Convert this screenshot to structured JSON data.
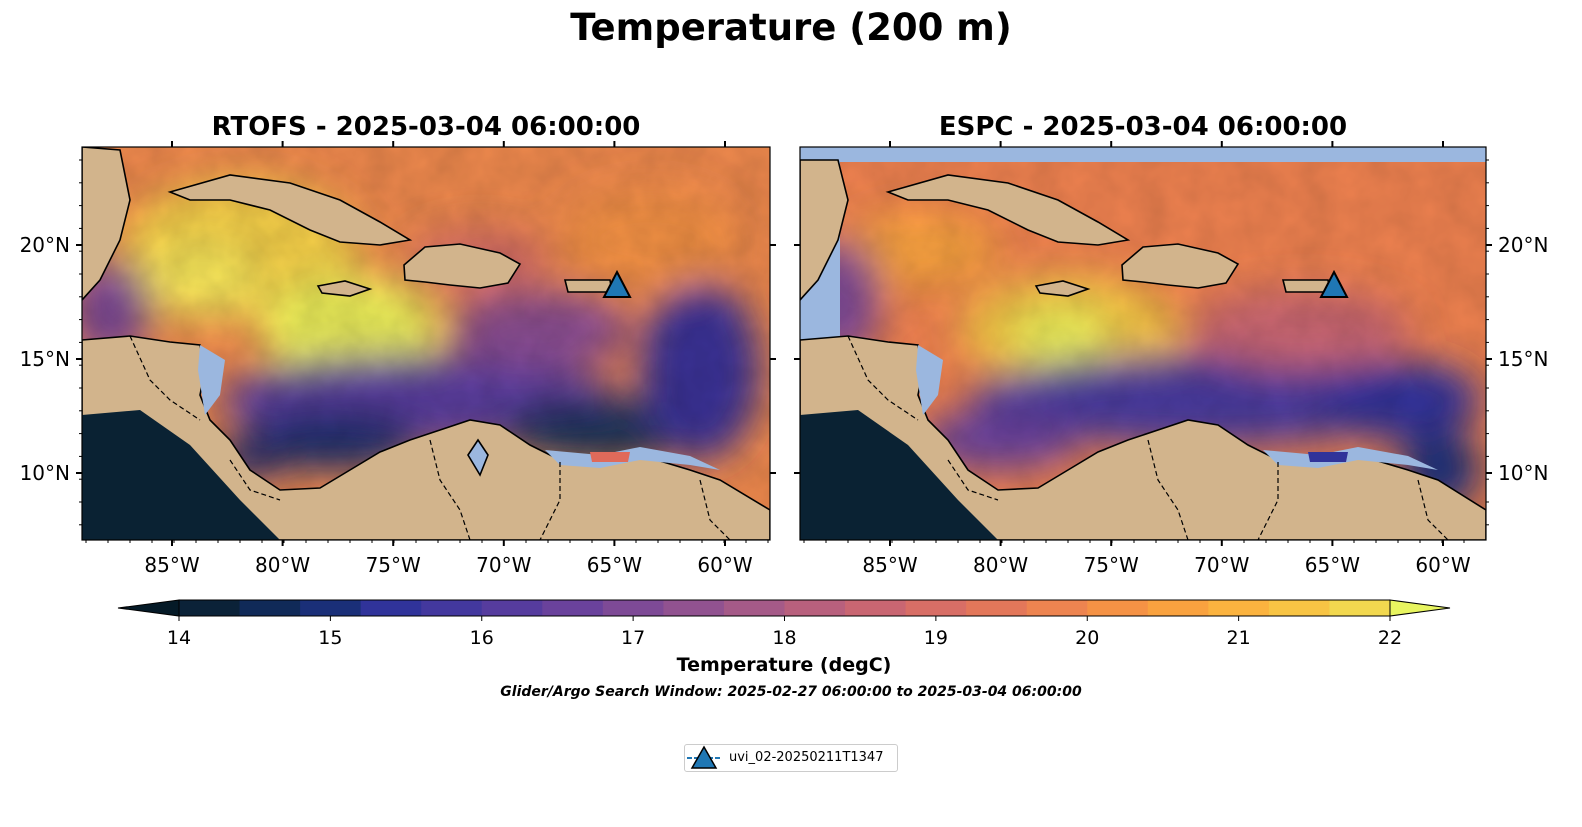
{
  "title": "Temperature (200 m)",
  "panels": [
    {
      "title": "RTOFS - 2025-03-04 06:00:00",
      "tick_side": "left"
    },
    {
      "title": "ESPC - 2025-03-04 06:00:00",
      "tick_side": "right"
    }
  ],
  "map": {
    "x_ticks": [
      "85°W",
      "80°W",
      "75°W",
      "70°W",
      "65°W",
      "60°W"
    ],
    "y_ticks": [
      "20°N",
      "15°N",
      "10°N"
    ],
    "colors": {
      "land": "#d2b48c",
      "ocean": "#9bb7df",
      "deep_pacific": "#0a2233"
    }
  },
  "colorbar": {
    "label": "Temperature (degC)",
    "ticks": [
      "14",
      "15",
      "16",
      "17",
      "18",
      "19",
      "20",
      "21",
      "22"
    ],
    "colors": [
      "#0b2238",
      "#102a58",
      "#1a2f78",
      "#30339a",
      "#43389e",
      "#563c9e",
      "#6a429c",
      "#7e4a96",
      "#915290",
      "#a55a88",
      "#b8607d",
      "#c96672",
      "#d86e66",
      "#e3775a",
      "#ed8450",
      "#f59245",
      "#f9a23f",
      "#fbb33f",
      "#f8c444",
      "#f2d84f"
    ],
    "under_color": "#051a27",
    "over_color": "#e8f560"
  },
  "search_window": "Glider/Argo Search Window: 2025-02-27 06:00:00 to 2025-03-04 06:00:00",
  "legend": {
    "label": "uvi_02-20250211T1347",
    "marker_color": "#1f77b4"
  }
}
